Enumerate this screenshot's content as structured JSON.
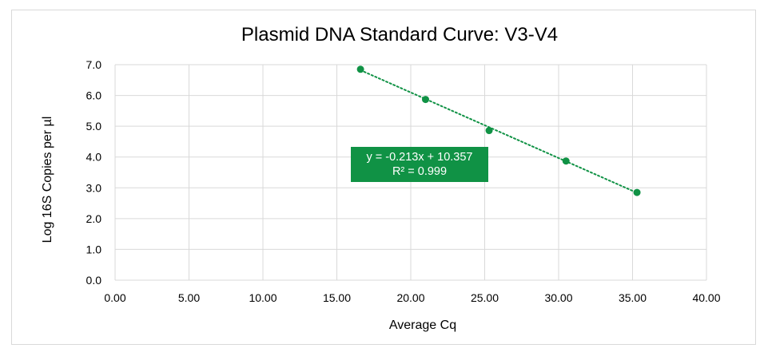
{
  "chart_data": {
    "type": "scatter",
    "title": "Plasmid DNA Standard Curve: V3-V4",
    "xlabel": "Average Cq",
    "ylabel": "Log 16S Copies per µl",
    "xlim": [
      0,
      40
    ],
    "ylim": [
      0,
      7
    ],
    "x_ticks": [
      "0.00",
      "5.00",
      "10.00",
      "15.00",
      "20.00",
      "25.00",
      "30.00",
      "35.00",
      "40.00"
    ],
    "y_ticks": [
      "0.0",
      "1.0",
      "2.0",
      "3.0",
      "4.0",
      "5.0",
      "6.0",
      "7.0"
    ],
    "grid": true,
    "series": [
      {
        "points": [
          {
            "x": 16.6,
            "y": 6.85
          },
          {
            "x": 21.0,
            "y": 5.87
          },
          {
            "x": 25.3,
            "y": 4.86
          },
          {
            "x": 30.5,
            "y": 3.87
          },
          {
            "x": 35.3,
            "y": 2.85
          }
        ],
        "color": "#109245"
      }
    ],
    "trendline": {
      "kind": "linear",
      "style": "dotted",
      "x_range": [
        16.6,
        35.3
      ],
      "equation": "y = -0.213x + 10.357",
      "r_squared": "R² = 0.999",
      "box_color": "#109245"
    }
  }
}
